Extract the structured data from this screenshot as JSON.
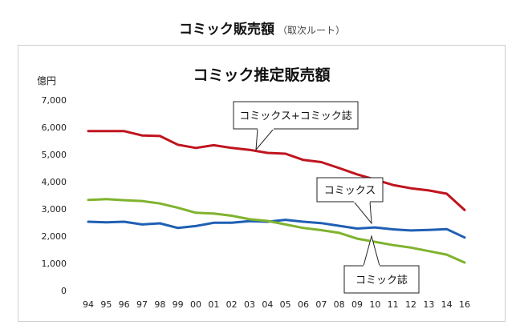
{
  "page": {
    "title": "コミック販売額",
    "subtitle": "（取次ルート）"
  },
  "chart_data": {
    "type": "line",
    "title": "コミック推定販売額",
    "ylabel": "億円",
    "xlabel": "",
    "ylim": [
      0,
      7000
    ],
    "yticks": [
      "0",
      "1,000",
      "2,000",
      "3,000",
      "4,000",
      "5,000",
      "6,000",
      "7,000"
    ],
    "categories": [
      "94",
      "95",
      "96",
      "97",
      "98",
      "99",
      "00",
      "01",
      "02",
      "03",
      "04",
      "05",
      "06",
      "07",
      "08",
      "09",
      "10",
      "11",
      "12",
      "13",
      "14",
      "16"
    ],
    "grid": false,
    "series": [
      {
        "name": "コミックス+コミック誌",
        "color": "#c0141e",
        "values": [
          5860,
          5860,
          5860,
          5700,
          5680,
          5360,
          5240,
          5340,
          5240,
          5170,
          5060,
          5030,
          4800,
          4720,
          4500,
          4270,
          4080,
          3880,
          3760,
          3680,
          3560,
          2960
        ]
      },
      {
        "name": "コミックス",
        "color": "#1f5fb4",
        "values": [
          2530,
          2510,
          2530,
          2430,
          2470,
          2300,
          2370,
          2490,
          2490,
          2550,
          2530,
          2600,
          2530,
          2480,
          2380,
          2280,
          2320,
          2250,
          2210,
          2230,
          2260,
          1950
        ]
      },
      {
        "name": "コミック誌",
        "color": "#7fb32e",
        "values": [
          3330,
          3360,
          3320,
          3290,
          3200,
          3040,
          2860,
          2830,
          2750,
          2620,
          2560,
          2430,
          2300,
          2220,
          2120,
          1910,
          1790,
          1670,
          1580,
          1450,
          1320,
          1030
        ]
      }
    ],
    "callouts": [
      "コミックス+コミック誌",
      "コミックス",
      "コミック誌"
    ]
  }
}
